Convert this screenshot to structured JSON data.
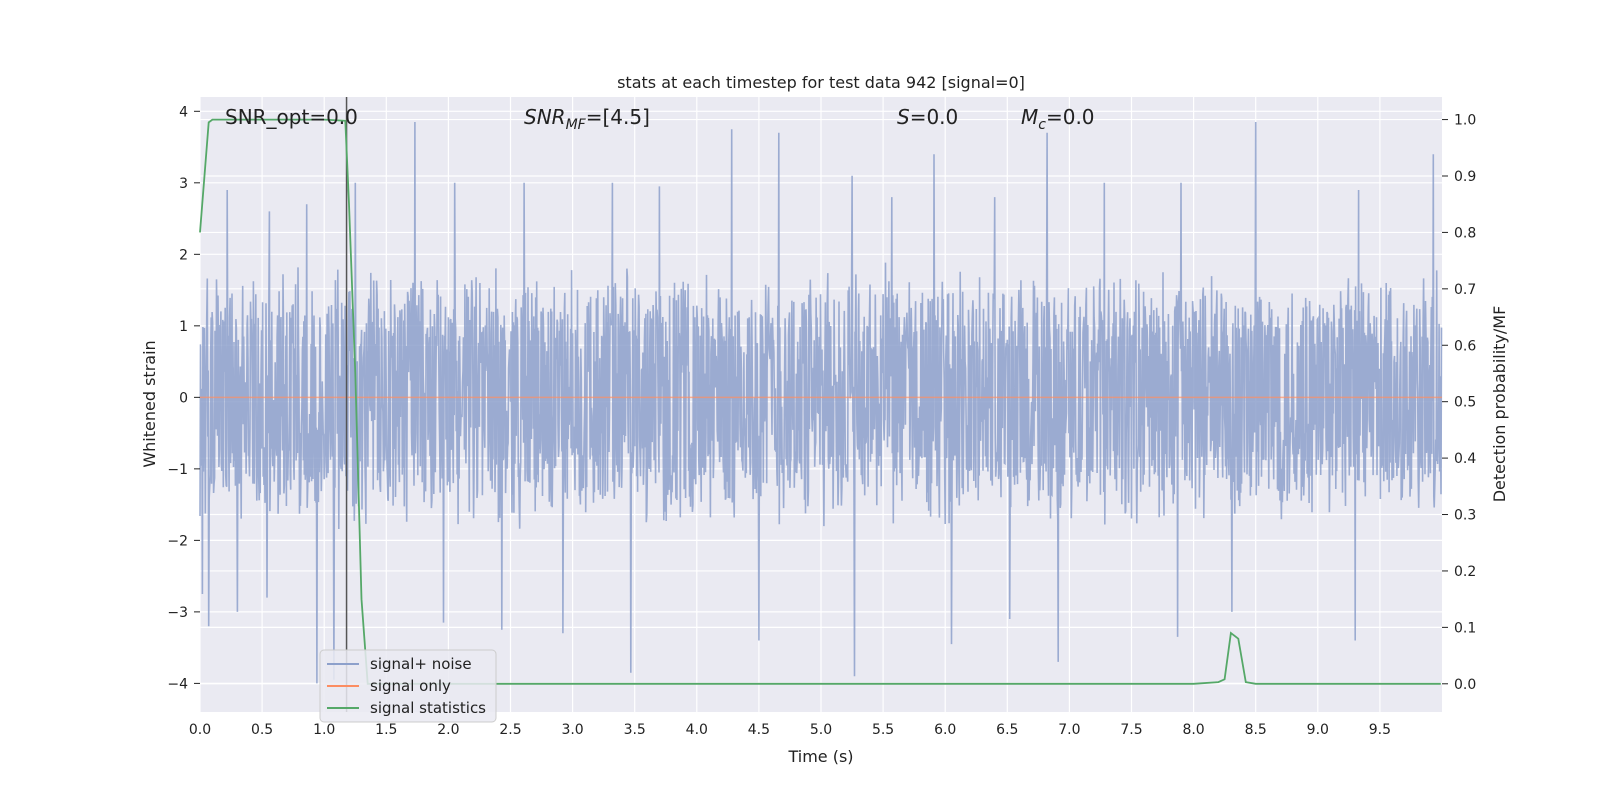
{
  "chart_data": {
    "type": "line",
    "title": "stats at each timestep for test data 942 [signal=0]",
    "xlabel": "Time (s)",
    "ylabel": "Whitened strain",
    "y2label": "Detection probability/MF",
    "xlim": [
      0.0,
      10.0
    ],
    "ylim": [
      -4.4,
      4.2
    ],
    "y2lim": [
      -0.05,
      1.04
    ],
    "x_ticks": [
      "0.0",
      "0.5",
      "1.0",
      "1.5",
      "2.0",
      "2.5",
      "3.0",
      "3.5",
      "4.0",
      "4.5",
      "5.0",
      "5.5",
      "6.0",
      "6.5",
      "7.0",
      "7.5",
      "8.0",
      "8.5",
      "9.0",
      "9.5"
    ],
    "y_ticks": [
      "4",
      "3",
      "2",
      "1",
      "0",
      "−1",
      "−2",
      "−3",
      "−4"
    ],
    "y2_ticks": [
      "1.0",
      "0.9",
      "0.8",
      "0.7",
      "0.6",
      "0.5",
      "0.4",
      "0.3",
      "0.2",
      "0.1",
      "0.0"
    ],
    "grid": true,
    "legend_position": "lower-left",
    "annotations": {
      "snr_opt": "SNR_opt=0.0",
      "snr_mf_italic": "SNR",
      "snr_mf_sub": "MF",
      "snr_mf_rest": "=[4.5]",
      "s_italic": "S",
      "s_rest": "=0.0",
      "mc_italic": "M",
      "mc_sub": "c",
      "mc_rest": "=0.0"
    },
    "vline_x": 1.18,
    "series": [
      {
        "name": "signal+ noise",
        "color": "#8da0cb",
        "kind": "noise",
        "sample_rate": 256,
        "typical_high": 1.9,
        "typical_low": -1.8,
        "peaks": [
          {
            "x": 0.02,
            "y": 2.0
          },
          {
            "x": 0.22,
            "y": 2.9
          },
          {
            "x": 0.56,
            "y": 2.6
          },
          {
            "x": 0.86,
            "y": 2.7
          },
          {
            "x": 1.25,
            "y": 3.0
          },
          {
            "x": 1.73,
            "y": 3.85
          },
          {
            "x": 2.05,
            "y": 3.0
          },
          {
            "x": 2.61,
            "y": 3.0
          },
          {
            "x": 3.32,
            "y": 3.0
          },
          {
            "x": 3.7,
            "y": 2.95
          },
          {
            "x": 4.28,
            "y": 3.75
          },
          {
            "x": 4.66,
            "y": 3.7
          },
          {
            "x": 5.25,
            "y": 3.1
          },
          {
            "x": 5.57,
            "y": 2.8
          },
          {
            "x": 5.91,
            "y": 3.4
          },
          {
            "x": 6.4,
            "y": 2.8
          },
          {
            "x": 6.82,
            "y": 3.7
          },
          {
            "x": 7.28,
            "y": 3.0
          },
          {
            "x": 7.9,
            "y": 3.0
          },
          {
            "x": 8.5,
            "y": 3.85
          },
          {
            "x": 9.33,
            "y": 2.9
          },
          {
            "x": 9.93,
            "y": 3.4
          }
        ],
        "troughs": [
          {
            "x": 0.02,
            "y": -2.75
          },
          {
            "x": 0.07,
            "y": -3.2
          },
          {
            "x": 0.3,
            "y": -3.0
          },
          {
            "x": 0.54,
            "y": -2.8
          },
          {
            "x": 0.94,
            "y": -4.0
          },
          {
            "x": 1.08,
            "y": -3.95
          },
          {
            "x": 1.96,
            "y": -3.15
          },
          {
            "x": 2.43,
            "y": -3.25
          },
          {
            "x": 2.92,
            "y": -3.3
          },
          {
            "x": 3.47,
            "y": -3.85
          },
          {
            "x": 4.5,
            "y": -3.4
          },
          {
            "x": 5.27,
            "y": -3.9
          },
          {
            "x": 6.05,
            "y": -3.45
          },
          {
            "x": 6.52,
            "y": -3.1
          },
          {
            "x": 6.91,
            "y": -3.7
          },
          {
            "x": 7.87,
            "y": -3.35
          },
          {
            "x": 8.31,
            "y": -3.0
          },
          {
            "x": 9.3,
            "y": -3.4
          }
        ]
      },
      {
        "name": "signal only",
        "color": "#fc8d62",
        "kind": "constant",
        "value": 0.0
      },
      {
        "name": "signal statistics",
        "color": "#55a868",
        "kind": "line",
        "axis": "right",
        "x": [
          0.0,
          0.07,
          0.1,
          0.2,
          0.5,
          1.0,
          1.17,
          1.2,
          1.25,
          1.3,
          1.35,
          1.5,
          2.0,
          3.0,
          4.0,
          5.0,
          6.0,
          7.0,
          8.0,
          8.2,
          8.25,
          8.3,
          8.36,
          8.42,
          8.5,
          9.0,
          9.5,
          9.99
        ],
        "y": [
          0.8,
          0.995,
          1.0,
          1.0,
          1.0,
          1.0,
          0.998,
          0.85,
          0.55,
          0.15,
          0.0,
          0.0,
          0.0,
          0.0,
          0.0,
          0.0,
          0.0,
          0.0,
          0.0,
          0.003,
          0.008,
          0.09,
          0.08,
          0.003,
          0.0,
          0.0,
          0.0,
          0.0
        ]
      }
    ]
  }
}
